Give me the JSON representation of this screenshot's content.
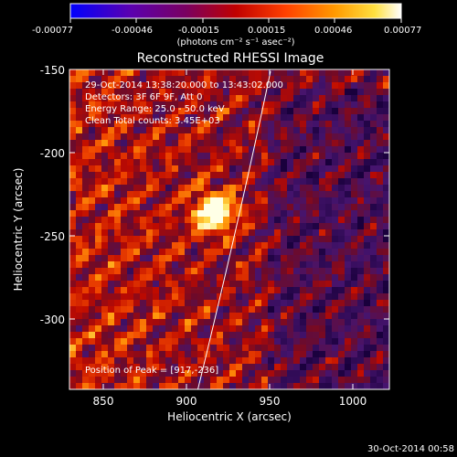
{
  "colorbar": {
    "ticks": [
      "-0.00077",
      "-0.00046",
      "-0.00015",
      "0.00015",
      "0.00046",
      "0.00077"
    ],
    "units": "(photons cm⁻² s⁻¹ asec⁻²)"
  },
  "title": "Reconstructed RHESSI Image",
  "info_lines": [
    "29-Oct-2014 13:38:20.000 to 13:43:02.000",
    "Detectors: 3F 6F 9F, Att 0",
    "Energy Range: 25.0 - 50.0 keV",
    "Clean    Total counts: 3.45E+03"
  ],
  "peak_text": "Position of Peak = [917,-236]",
  "axes": {
    "xlabel": "Heliocentric X (arcsec)",
    "ylabel": "Heliocentric Y (arcsec)",
    "xticks": [
      "850",
      "900",
      "950",
      "1000"
    ],
    "yticks": [
      "-150",
      "-200",
      "-250",
      "-300"
    ]
  },
  "footer_timestamp": "30-Oct-2014 00:58",
  "image_meta": {
    "x_range_arcsec": [
      830,
      1022
    ],
    "y_range_arcsec": [
      -342,
      -150
    ],
    "peak_arcsec": [
      917,
      -236
    ],
    "colormap": "rainbow-heat (blue-purple-red-orange-yellow-white)"
  }
}
